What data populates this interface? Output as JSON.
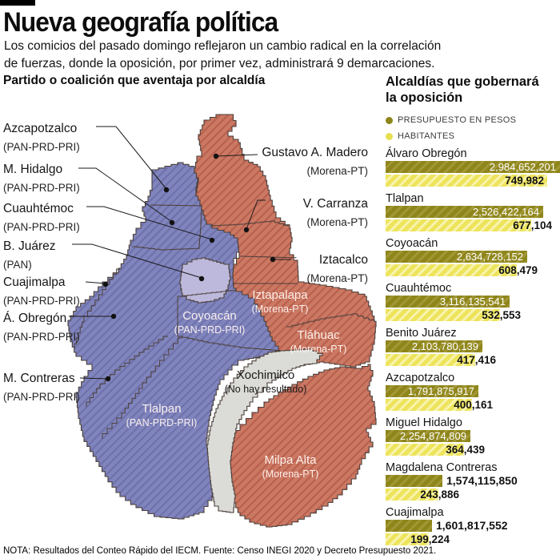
{
  "header": {
    "title": "Nueva geografía política",
    "subtitle_lines": [
      "Los comicios del pasado domingo reflejaron un cambio radical en la correlación",
      "de fuerzas, donde la oposición, por primer vez, administrará 9 demarcaciones."
    ]
  },
  "map_section": {
    "heading": "Partido o coalición que aventaja por alcaldía",
    "left_labels": [
      {
        "name": "Azcapotzalco",
        "party": "(PAN-PRD-PRI)"
      },
      {
        "name": "M. Hidalgo",
        "party": "(PAN-PRD-PRI)"
      },
      {
        "name": "Cuauhtémoc",
        "party": "(PAN-PRD-PRI)"
      },
      {
        "name": "B. Juárez",
        "party": "(PAN)"
      },
      {
        "name": "Cuajimalpa",
        "party": "(PAN-PRD-PRI)"
      },
      {
        "name": "Á. Obregón",
        "party": "(PAN-PRD-PRI)"
      },
      {
        "name": "M. Contreras",
        "party": "(PAN-PRD-PRI)"
      }
    ],
    "right_labels": [
      {
        "name": "Gustavo A. Madero",
        "party": "(Morena-PT)"
      },
      {
        "name": "V. Carranza",
        "party": "(Morena-PT)"
      },
      {
        "name": "Iztacalco",
        "party": "(Morena-PT)"
      }
    ],
    "inner_labels": [
      {
        "name": "Coyoacán",
        "party": "(PAN-PRD-PRI)",
        "dark": false
      },
      {
        "name": "Iztapalapa",
        "party": "(Morena-PT)",
        "dark": false
      },
      {
        "name": "Tláhuac",
        "party": "(Morena-PT)",
        "dark": false
      },
      {
        "name": "Xochimilco",
        "party": "(No hay resultado)",
        "dark": true
      },
      {
        "name": "Tlalpan",
        "party": "(PAN-PRD-PRI)",
        "dark": false
      },
      {
        "name": "Milpa Alta",
        "party": "(Morena-PT)",
        "dark": false
      }
    ]
  },
  "chart": {
    "heading_lines": [
      "Alcaldías que gobernará",
      "la oposición"
    ],
    "legend": [
      {
        "label": "PRESUPUESTO EN PESOS",
        "color": "#8e851b"
      },
      {
        "label": "HABITANTES",
        "color": "#e7df50"
      }
    ],
    "rows": [
      {
        "name": "Álvaro Obregón",
        "budget": "2,984,652,201",
        "habitantes": "749,982"
      },
      {
        "name": "Tlalpan",
        "budget": "2,526,422,164",
        "habitantes": "677,104"
      },
      {
        "name": "Coyoacán",
        "budget": "2,634,728,152",
        "habitantes": "608,479"
      },
      {
        "name": "Cuauhtémoc",
        "budget": "3,116,135,541",
        "habitantes": "532,553"
      },
      {
        "name": "Benito Juárez",
        "budget": "2,103,780,139",
        "habitantes": "417,416"
      },
      {
        "name": "Azcapotzalco",
        "budget": "1,791,875,917",
        "habitantes": "400,161"
      },
      {
        "name": "Miguel Hidalgo",
        "budget": "2,254,874,809",
        "habitantes": "364,439"
      },
      {
        "name": "Magdalena Contreras",
        "budget": "1,574,115,850",
        "habitantes": "243,886"
      },
      {
        "name": "Cuajimalpa",
        "budget": "1,601,817,552",
        "habitantes": "199,224"
      }
    ]
  },
  "chart_data": [
    {
      "type": "bar",
      "orientation": "horizontal",
      "title": "Alcaldías que gobernará la oposición",
      "categories": [
        "Álvaro Obregón",
        "Tlalpan",
        "Coyoacán",
        "Cuauhtémoc",
        "Benito Juárez",
        "Azcapotzalco",
        "Miguel Hidalgo",
        "Magdalena Contreras",
        "Cuajimalpa"
      ],
      "series": [
        {
          "name": "PRESUPUESTO EN PESOS",
          "values": [
            2984652201,
            2526422164,
            2634728152,
            3116135541,
            2103780139,
            1791875917,
            2254874809,
            1574115850,
            1601817552
          ]
        },
        {
          "name": "HABITANTES",
          "values": [
            749982,
            677104,
            608479,
            532553,
            417416,
            400161,
            364439,
            243886,
            199224
          ]
        }
      ],
      "legend_position": "top",
      "grid": false,
      "note": "Both bars of each pair are drawn proportional to HABITANTES share of the maximum (749,982)."
    },
    {
      "type": "table",
      "title": "Partido o coalición que aventaja por alcaldía",
      "columns": [
        "Alcaldía",
        "Partido o coalición"
      ],
      "rows": [
        [
          "Azcapotzalco",
          "PAN-PRD-PRI"
        ],
        [
          "M. Hidalgo",
          "PAN-PRD-PRI"
        ],
        [
          "Cuauhtémoc",
          "PAN-PRD-PRI"
        ],
        [
          "B. Juárez",
          "PAN"
        ],
        [
          "Cuajimalpa",
          "PAN-PRD-PRI"
        ],
        [
          "Á. Obregón",
          "PAN-PRD-PRI"
        ],
        [
          "M. Contreras",
          "PAN-PRD-PRI"
        ],
        [
          "Coyoacán",
          "PAN-PRD-PRI"
        ],
        [
          "Tlalpan",
          "PAN-PRD-PRI"
        ],
        [
          "Gustavo A. Madero",
          "Morena-PT"
        ],
        [
          "V. Carranza",
          "Morena-PT"
        ],
        [
          "Iztacalco",
          "Morena-PT"
        ],
        [
          "Iztapalapa",
          "Morena-PT"
        ],
        [
          "Tláhuac",
          "Morena-PT"
        ],
        [
          "Milpa Alta",
          "Morena-PT"
        ],
        [
          "Xochimilco",
          "No hay resultado"
        ]
      ]
    }
  ],
  "colors": {
    "pan_prd_pri": "#8185be",
    "pan": "#bdb9dc",
    "morena_pt": "#cc7964",
    "no_result": "#dbdbd7",
    "budget_bar": "#8e851b",
    "habitantes_bar": "#ede45c"
  },
  "footer": {
    "note": "NOTA: Resultados del Conteo Rápido del IECM. Fuente: Censo INEGI 2020 y Decreto Presupuesto 2021."
  }
}
